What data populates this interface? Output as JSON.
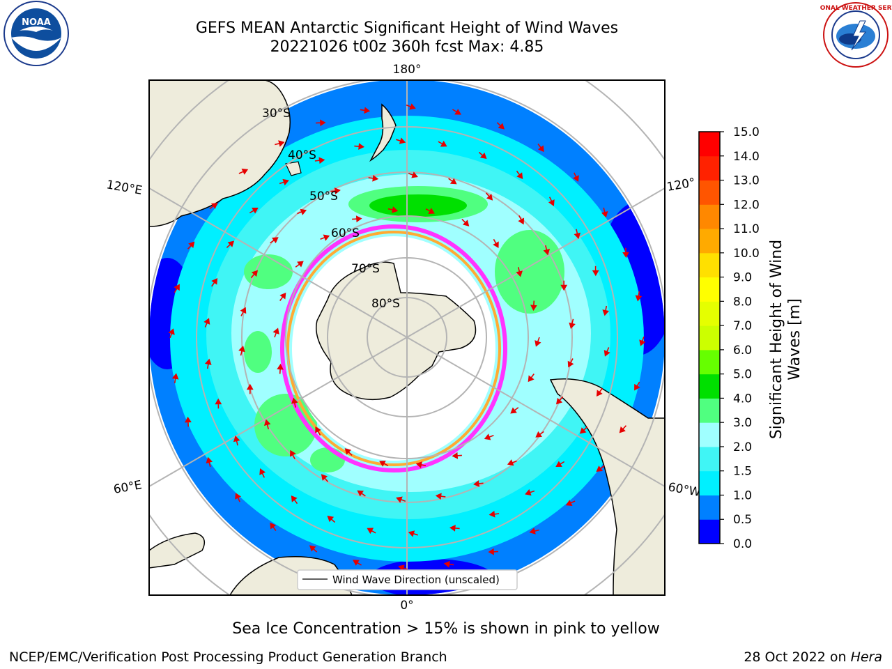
{
  "title_line1": "GEFS MEAN Antarctic Significant Height of Wind Waves",
  "title_line2": "20221026 t00z 360h fcst   Max: 4.85",
  "logos": {
    "left": "NOAA",
    "right": "NATIONAL WEATHER SERVICE"
  },
  "map": {
    "longitude_labels": {
      "top": "180°",
      "bottom": "0°",
      "left_upper": "120°E",
      "left_lower": "60°E",
      "right_upper": "120°",
      "right_lower": "60°W"
    },
    "latitude_labels": [
      "30°S",
      "40°S",
      "50°S",
      "60°S",
      "70°S",
      "80°S"
    ],
    "legend": "Wind Wave Direction (unscaled)",
    "arrow_color": "#e60000",
    "ice_colors": [
      "#ff33ff",
      "#ffaa33",
      "#ffdd55"
    ],
    "land_color": "#eeecdc"
  },
  "colorbar": {
    "label": "Significant Height of Wind Waves [m]",
    "ticks": [
      "0.0",
      "0.5",
      "1.0",
      "1.5",
      "2.0",
      "3.0",
      "4.0",
      "5.0",
      "6.0",
      "7.0",
      "8.0",
      "9.0",
      "10.0",
      "11.0",
      "12.0",
      "13.0",
      "14.0",
      "15.0"
    ],
    "colors": [
      "#0000ff",
      "#0080ff",
      "#00f0ff",
      "#40f5f5",
      "#a0ffff",
      "#50ff80",
      "#00e000",
      "#66ff00",
      "#ccff00",
      "#e5ff00",
      "#ffff00",
      "#ffe000",
      "#ffaa00",
      "#ff8800",
      "#ff5500",
      "#ff2200",
      "#ff0000"
    ]
  },
  "caption": "Sea Ice Concentration > 15% is shown in pink to yellow",
  "footer_left": "NCEP/EMC/Verification Post Processing Product Generation Branch",
  "footer_right_prefix": "28 Oct 2022 on ",
  "footer_right_host": "Hera"
}
